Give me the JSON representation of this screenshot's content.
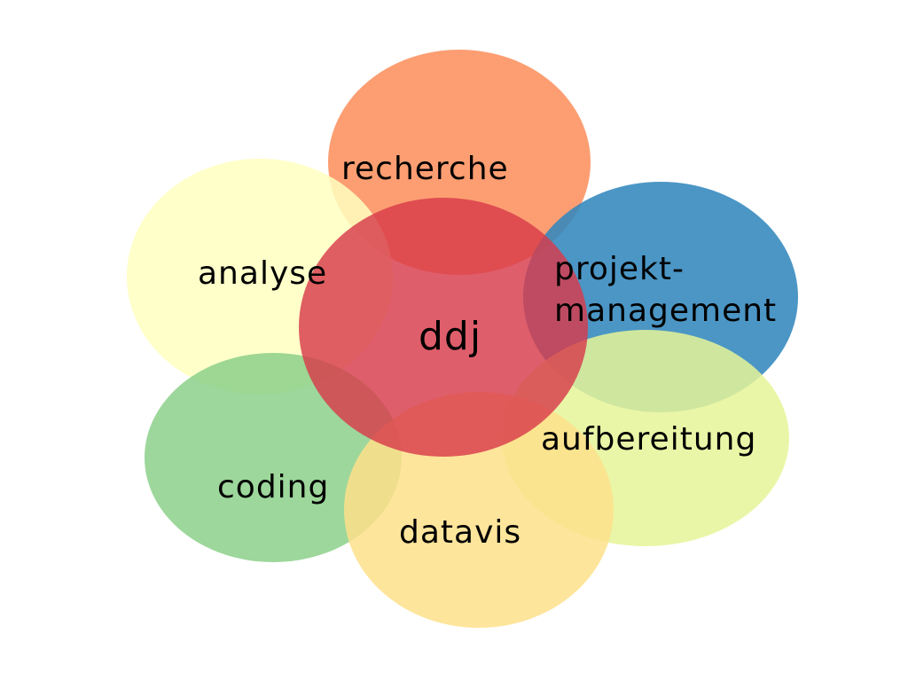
{
  "diagram": {
    "center": {
      "label": "ddj",
      "color": "#D83A4B"
    },
    "nodes": {
      "recherche": {
        "label": "recherche",
        "color": "#FC8D59"
      },
      "projektmanagement": {
        "label_line1": "projekt-",
        "label_line2": "management",
        "color": "#3288BD"
      },
      "aufbereitung": {
        "label": "aufbereitung",
        "color": "#E6F598"
      },
      "datavis": {
        "label": "datavis",
        "color": "#FEE08B"
      },
      "coding": {
        "label": "coding",
        "color": "#8CD08A"
      },
      "analyse": {
        "label": "analyse",
        "color": "#FFFFBF"
      }
    }
  }
}
